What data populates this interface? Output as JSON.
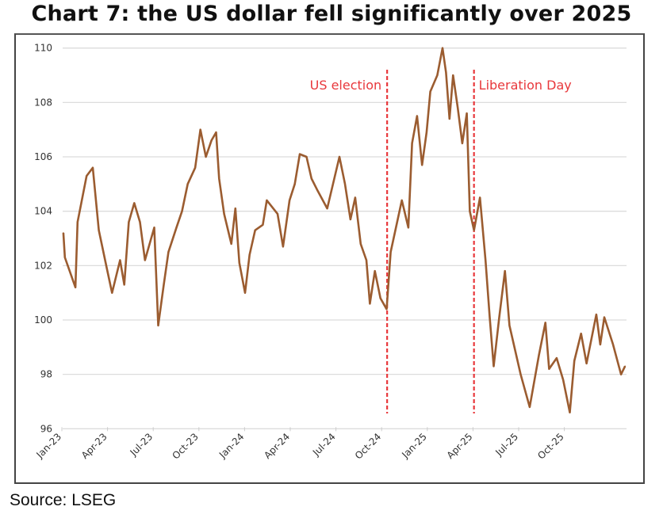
{
  "chart_data": {
    "type": "line",
    "title": "Chart 7: the US dollar fell significantly over 2025",
    "source": "Source: LSEG",
    "xlabel": "",
    "ylabel": "",
    "ylim": [
      96,
      110
    ],
    "yticks": [
      96,
      98,
      100,
      102,
      104,
      106,
      108,
      110
    ],
    "xticks": [
      "Jan-23",
      "Apr-23",
      "Jul-23",
      "Oct-23",
      "Jan-24",
      "Apr-24",
      "Jul-24",
      "Oct-24",
      "Jan-25",
      "Apr-25",
      "Jul-25",
      "Oct-25"
    ],
    "grid": "horizontal",
    "legend": "none",
    "line_color": "#9b5c30",
    "annotation_color": "#e8383c",
    "annotations": [
      {
        "label": "US election",
        "date": "2024-10-12",
        "label_side": "left"
      },
      {
        "label": "Liberation Day",
        "date": "2025-04-03",
        "label_side": "right"
      }
    ],
    "series": [
      {
        "x": [
          "2023-01-04",
          "2023-01-07",
          "2023-01-28",
          "2023-02-02",
          "2023-02-20",
          "2023-03-02",
          "2023-03-14",
          "2023-03-30",
          "2023-04-10",
          "2023-04-26",
          "2023-05-04",
          "2023-05-13",
          "2023-05-24",
          "2023-06-05",
          "2023-06-15",
          "2023-07-03",
          "2023-07-11",
          "2023-07-22",
          "2023-08-01",
          "2023-08-17",
          "2023-08-28",
          "2023-09-09",
          "2023-09-24",
          "2023-10-04",
          "2023-10-15",
          "2023-10-26",
          "2023-11-05",
          "2023-11-11",
          "2023-11-21",
          "2023-12-05",
          "2023-12-13",
          "2023-12-21",
          "2024-01-02",
          "2024-01-11",
          "2024-01-22",
          "2024-02-07",
          "2024-02-15",
          "2024-03-06",
          "2024-03-17",
          "2024-03-30",
          "2024-04-10",
          "2024-04-20",
          "2024-05-03",
          "2024-05-13",
          "2024-05-24",
          "2024-06-14",
          "2024-07-08",
          "2024-07-19",
          "2024-07-30",
          "2024-08-09",
          "2024-08-20",
          "2024-09-01",
          "2024-09-08",
          "2024-09-18",
          "2024-09-29",
          "2024-10-11",
          "2024-10-19",
          "2024-11-11",
          "2024-11-24",
          "2024-12-01",
          "2024-12-11",
          "2024-12-21",
          "2024-12-30",
          "2025-01-07",
          "2025-01-21",
          "2025-02-01",
          "2025-02-08",
          "2025-02-15",
          "2025-02-22",
          "2025-03-01",
          "2025-03-10",
          "2025-03-19",
          "2025-03-25",
          "2025-04-03",
          "2025-04-15",
          "2025-04-26",
          "2025-05-04",
          "2025-05-12",
          "2025-05-23",
          "2025-06-04",
          "2025-06-13",
          "2025-07-05",
          "2025-07-23",
          "2025-08-11",
          "2025-08-24",
          "2025-09-01",
          "2025-09-16",
          "2025-09-29",
          "2025-10-12",
          "2025-10-21",
          "2025-11-04",
          "2025-11-15",
          "2025-12-04",
          "2025-12-12",
          "2025-12-20",
          "2026-01-07",
          "2026-01-23",
          "2026-01-31"
        ],
        "values": [
          103.2,
          102.3,
          101.2,
          103.6,
          105.3,
          105.6,
          103.3,
          101.9,
          101.0,
          102.2,
          101.3,
          103.6,
          104.3,
          103.6,
          102.2,
          103.4,
          99.8,
          101.3,
          102.5,
          103.4,
          104.0,
          105.0,
          105.6,
          107.0,
          106.0,
          106.6,
          106.9,
          105.2,
          103.9,
          102.8,
          104.1,
          102.1,
          101.0,
          102.4,
          103.3,
          103.5,
          104.4,
          103.9,
          102.7,
          104.4,
          105.0,
          106.1,
          106.0,
          105.2,
          104.8,
          104.1,
          106.0,
          105.0,
          103.7,
          104.5,
          102.8,
          102.2,
          100.6,
          101.8,
          100.8,
          100.4,
          102.5,
          104.4,
          103.4,
          106.5,
          107.5,
          105.7,
          106.9,
          108.4,
          109.0,
          110.0,
          109.1,
          107.4,
          109.0,
          107.8,
          106.5,
          107.6,
          104.0,
          103.3,
          104.5,
          102.2,
          100.1,
          98.3,
          100.1,
          101.8,
          99.8,
          98.0,
          96.8,
          98.7,
          99.9,
          98.2,
          98.6,
          97.8,
          96.6,
          98.5,
          99.5,
          98.4,
          100.2,
          99.1,
          100.1,
          99.1,
          98.0,
          98.3
        ]
      }
    ]
  }
}
